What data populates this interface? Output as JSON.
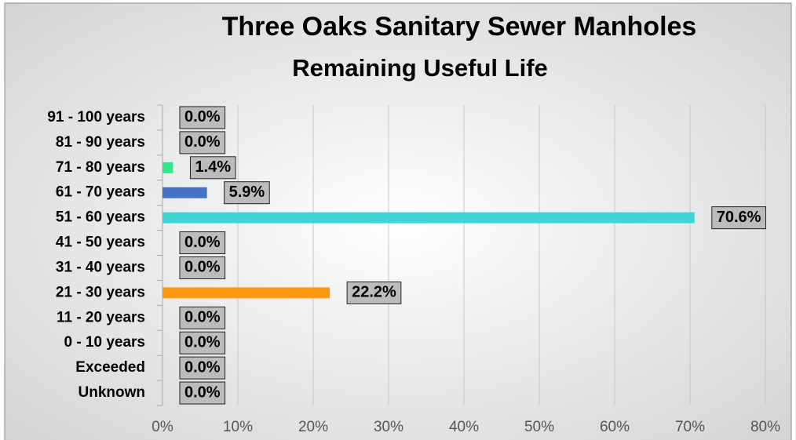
{
  "chart_data": {
    "type": "barh",
    "title": "Three Oaks Sanitary Sewer Manholes",
    "subtitle": "Remaining Useful Life",
    "categories": [
      "91 - 100 years",
      "81 - 90 years",
      "71 - 80 years",
      "61 - 70 years",
      "51 - 60 years",
      "41 - 50 years",
      "31 - 40 years",
      "21 - 30 years",
      "11 - 20 years",
      "0 - 10 years",
      "Exceeded",
      "Unknown"
    ],
    "values": [
      0,
      0,
      1.4,
      5.9,
      70.6,
      0,
      0,
      22.2,
      0,
      0,
      0,
      0
    ],
    "value_labels": [
      "0.0%",
      "0.0%",
      "1.4%",
      "5.9%",
      "70.6%",
      "0.0%",
      "0.0%",
      "22.2%",
      "0.0%",
      "0.0%",
      "0.0%",
      "0.0%"
    ],
    "colors": [
      "#999999",
      "#999999",
      "#2ee88a",
      "#4472c4",
      "#3fd6d6",
      "#999999",
      "#999999",
      "#ff9a10",
      "#999999",
      "#999999",
      "#999999",
      "#999999"
    ],
    "xlim": [
      0,
      80
    ],
    "xticks": [
      {
        "value": 0,
        "label": "0%"
      },
      {
        "value": 10,
        "label": "10%"
      },
      {
        "value": 20,
        "label": "20%"
      },
      {
        "value": 30,
        "label": "30%"
      },
      {
        "value": 40,
        "label": "40%"
      },
      {
        "value": 50,
        "label": "50%"
      },
      {
        "value": 60,
        "label": "60%"
      },
      {
        "value": 70,
        "label": "70%"
      },
      {
        "value": 80,
        "label": "80%"
      }
    ],
    "grid": true
  }
}
